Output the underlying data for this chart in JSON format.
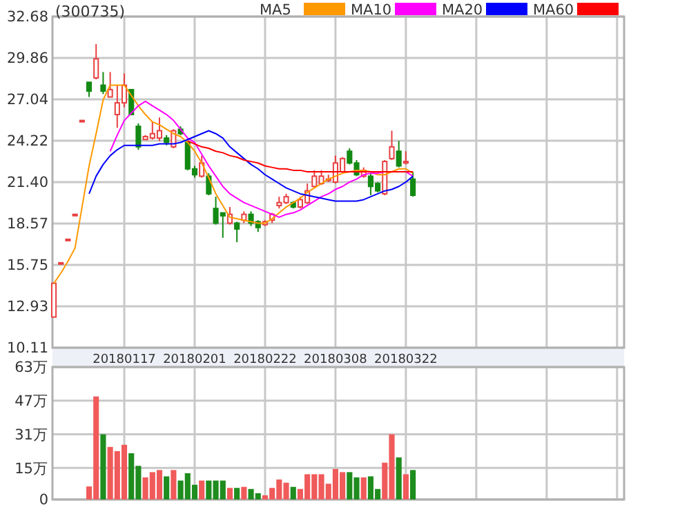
{
  "chart_data": [
    {
      "type": "candlestick",
      "title": "(300735)",
      "categories": [
        null,
        null,
        null,
        null,
        null,
        null,
        null,
        null,
        null,
        null,
        "20180117",
        null,
        null,
        null,
        null,
        null,
        null,
        null,
        null,
        null,
        "20180201",
        null,
        null,
        null,
        null,
        null,
        null,
        null,
        null,
        null,
        "20180222",
        null,
        null,
        null,
        null,
        null,
        null,
        null,
        null,
        null,
        "20180308",
        null,
        null,
        null,
        null,
        null,
        null,
        null,
        null,
        null,
        "20180322",
        null,
        null,
        null,
        null,
        null,
        null,
        null,
        null,
        null,
        null,
        null,
        null,
        null,
        null,
        null,
        null,
        null,
        null,
        null,
        null,
        null,
        null,
        null,
        null,
        null,
        null,
        null,
        null,
        null,
        null
      ],
      "ohlc": [
        [
          12.2,
          14.5,
          12.2,
          14.5
        ],
        [
          15.9,
          15.9,
          15.9,
          15.9
        ],
        [
          17.5,
          17.5,
          17.5,
          17.5
        ],
        [
          19.2,
          19.2,
          19.2,
          19.2
        ],
        [
          25.6,
          25.6,
          25.6,
          25.6
        ],
        [
          28.2,
          28.2,
          27.2,
          27.6
        ],
        [
          28.5,
          30.8,
          28.4,
          29.8
        ],
        [
          28.0,
          28.9,
          27.4,
          27.6
        ],
        [
          27.2,
          28.9,
          27.2,
          27.7
        ],
        [
          26.0,
          28.0,
          25.1,
          26.8
        ],
        [
          26.8,
          28.8,
          26.5,
          28.0
        ],
        [
          27.7,
          27.7,
          26.0,
          26.0
        ],
        [
          25.2,
          25.4,
          23.6,
          23.8
        ],
        [
          24.3,
          24.6,
          24.3,
          24.5
        ],
        [
          24.4,
          25.5,
          24.3,
          24.7
        ],
        [
          24.4,
          25.8,
          24.2,
          24.9
        ],
        [
          24.4,
          24.6,
          23.9,
          24.1
        ],
        [
          23.8,
          25.0,
          23.7,
          24.9
        ],
        [
          25.0,
          25.2,
          24.6,
          24.7
        ],
        [
          24.1,
          24.2,
          22.2,
          22.3
        ],
        [
          22.3,
          22.5,
          21.7,
          21.9
        ],
        [
          21.8,
          23.2,
          21.7,
          22.7
        ],
        [
          21.8,
          22.0,
          20.5,
          20.6
        ],
        [
          19.6,
          20.4,
          18.5,
          18.6
        ],
        [
          19.3,
          19.3,
          17.6,
          19.1
        ],
        [
          18.6,
          19.7,
          18.5,
          19.2
        ],
        [
          18.6,
          18.7,
          17.3,
          18.2
        ],
        [
          18.8,
          19.4,
          18.6,
          19.2
        ],
        [
          19.2,
          19.4,
          18.4,
          18.6
        ],
        [
          18.7,
          18.8,
          18.0,
          18.3
        ],
        [
          18.5,
          18.8,
          18.4,
          18.7
        ],
        [
          18.8,
          19.3,
          18.6,
          19.2
        ],
        [
          19.8,
          20.4,
          19.6,
          20.0
        ],
        [
          20.0,
          20.6,
          19.9,
          20.4
        ],
        [
          20.0,
          20.1,
          19.6,
          19.7
        ],
        [
          19.7,
          20.4,
          19.6,
          20.2
        ],
        [
          20.0,
          21.3,
          19.9,
          20.8
        ],
        [
          21.1,
          22.2,
          21.0,
          21.8
        ],
        [
          21.3,
          22.2,
          21.2,
          21.8
        ],
        [
          21.5,
          21.9,
          21.4,
          21.6
        ],
        [
          21.4,
          23.2,
          21.3,
          22.7
        ],
        [
          22.1,
          23.1,
          22.0,
          23.0
        ],
        [
          23.5,
          23.7,
          22.6,
          22.7
        ],
        [
          22.7,
          22.9,
          21.8,
          21.9
        ],
        [
          21.8,
          22.4,
          21.7,
          22.2
        ],
        [
          21.8,
          22.0,
          20.5,
          21.1
        ],
        [
          21.3,
          21.4,
          20.7,
          20.8
        ],
        [
          20.6,
          22.9,
          20.5,
          22.8
        ],
        [
          23.0,
          24.9,
          22.9,
          23.8
        ],
        [
          23.5,
          24.2,
          22.4,
          22.5
        ],
        [
          22.7,
          23.5,
          22.6,
          22.8
        ],
        [
          21.6,
          22.1,
          20.4,
          20.5
        ],
        null,
        null,
        null,
        null,
        null,
        null,
        null,
        null,
        null,
        null,
        null,
        null,
        null,
        null,
        null,
        null,
        null,
        null,
        null,
        null,
        null,
        null,
        null,
        null,
        null,
        null,
        null,
        null,
        null
      ],
      "series": [
        {
          "name": "MA5",
          "type": "line",
          "color": "#ff9900",
          "values": [
            14.5,
            15.2,
            16.0,
            16.9,
            19.7,
            22.5,
            24.7,
            27.0,
            28.0,
            28.0,
            28.0,
            27.3,
            26.6,
            26.0,
            25.5,
            25.3,
            25.0,
            24.7,
            24.5,
            24.1,
            23.5,
            22.7,
            21.7,
            20.6,
            19.8,
            19.0,
            18.9,
            18.8,
            18.7,
            18.6,
            18.6,
            18.9,
            19.3,
            19.7,
            20.0,
            20.3,
            20.7,
            21.0,
            21.3,
            21.6,
            21.8,
            22.0,
            22.1,
            22.2,
            22.2,
            22.1,
            21.9,
            21.9,
            22.1,
            22.3,
            22.3,
            22.0,
            null,
            null,
            null,
            null,
            null,
            null,
            null,
            null,
            null,
            null,
            null,
            null,
            null,
            null,
            null,
            null,
            null,
            null,
            null,
            null,
            null,
            null,
            null,
            null,
            null,
            null,
            null,
            null,
            null
          ]
        },
        {
          "name": "MA10",
          "type": "line",
          "color": "#ff00ff",
          "values": [
            null,
            null,
            null,
            null,
            null,
            null,
            null,
            null,
            23.5,
            24.6,
            25.6,
            26.1,
            26.6,
            26.9,
            26.6,
            26.3,
            26.0,
            25.6,
            25.0,
            24.4,
            24.1,
            23.3,
            22.5,
            21.8,
            21.1,
            20.6,
            20.3,
            20.0,
            19.8,
            19.6,
            19.4,
            19.2,
            19.0,
            19.2,
            19.3,
            19.5,
            19.8,
            20.1,
            20.4,
            20.6,
            20.9,
            21.1,
            21.4,
            21.6,
            21.9,
            22.0,
            22.0,
            22.1,
            22.1,
            22.1,
            22.1,
            21.8,
            null,
            null,
            null,
            null,
            null,
            null,
            null,
            null,
            null,
            null,
            null,
            null,
            null,
            null,
            null,
            null,
            null,
            null,
            null,
            null,
            null,
            null,
            null,
            null,
            null,
            null,
            null,
            null,
            null
          ]
        },
        {
          "name": "MA20",
          "type": "line",
          "color": "#0000ff",
          "values": [
            null,
            null,
            null,
            null,
            null,
            20.6,
            21.8,
            22.6,
            23.2,
            23.6,
            23.9,
            23.9,
            23.9,
            23.9,
            23.9,
            24.0,
            24.0,
            24.0,
            24.1,
            24.3,
            24.5,
            24.7,
            24.9,
            24.7,
            24.4,
            23.8,
            23.4,
            23.0,
            22.6,
            22.3,
            21.9,
            21.6,
            21.3,
            21.0,
            20.8,
            20.6,
            20.5,
            20.4,
            20.3,
            20.2,
            20.1,
            20.1,
            20.1,
            20.1,
            20.2,
            20.4,
            20.6,
            20.8,
            20.9,
            21.1,
            21.4,
            21.8,
            null,
            null,
            null,
            null,
            null,
            null,
            null,
            null,
            null,
            null,
            null,
            null,
            null,
            null,
            null,
            null,
            null,
            null,
            null,
            null,
            null,
            null,
            null,
            null,
            null,
            null,
            null,
            null,
            null
          ]
        },
        {
          "name": "MA60",
          "type": "line",
          "color": "#ff0000",
          "values": [
            null,
            null,
            null,
            null,
            null,
            null,
            null,
            null,
            null,
            null,
            null,
            null,
            null,
            null,
            null,
            null,
            null,
            null,
            null,
            24.2,
            24.0,
            23.8,
            23.7,
            23.5,
            23.4,
            23.2,
            23.1,
            22.9,
            22.8,
            22.7,
            22.5,
            22.4,
            22.3,
            22.3,
            22.2,
            22.2,
            22.1,
            22.1,
            22.1,
            22.1,
            22.1,
            22.1,
            22.1,
            22.1,
            22.1,
            22.1,
            22.1,
            22.1,
            22.1,
            22.1,
            22.1,
            22.1,
            null,
            null,
            null,
            null,
            null,
            null,
            null,
            null,
            null,
            null,
            null,
            null,
            null,
            null,
            null,
            null,
            null,
            null,
            null,
            null,
            null,
            null,
            null,
            null,
            null,
            null,
            null,
            null,
            null
          ]
        }
      ],
      "ylim": [
        10.11,
        32.68
      ],
      "yticks": [
        10.11,
        12.93,
        15.75,
        18.57,
        {
          "value": 21.4,
          "label": "21.40"
        },
        24.22,
        27.04,
        29.86,
        32.68
      ],
      "grid": true,
      "legend": "top right"
    },
    {
      "type": "bar",
      "categories": [
        null,
        null,
        null,
        null,
        null,
        null,
        null,
        null,
        null,
        null,
        null,
        null,
        null,
        null,
        null,
        null,
        null,
        null,
        null,
        null,
        null,
        null,
        null,
        null,
        null,
        null,
        null,
        null,
        null,
        null,
        null,
        null,
        null,
        null,
        null,
        null,
        null,
        null,
        null,
        null,
        null,
        null,
        null,
        null,
        null,
        null,
        null,
        null,
        null,
        null,
        null,
        null,
        null,
        null,
        null,
        null,
        null,
        null,
        null,
        null,
        null,
        null,
        null,
        null,
        null,
        null,
        null,
        null,
        null,
        null,
        null,
        null,
        null,
        null,
        null,
        null,
        null,
        null,
        null,
        null,
        null
      ],
      "values": [
        null,
        null,
        null,
        null,
        null,
        6.2,
        49,
        31,
        25,
        23,
        26,
        22,
        16,
        10.5,
        13,
        14,
        11,
        14,
        9,
        12.5,
        7,
        9,
        9,
        9,
        9,
        5.5,
        5.5,
        6,
        5,
        3,
        2,
        5.5,
        9.5,
        8,
        6,
        5,
        12,
        12,
        12,
        7.5,
        14.5,
        13,
        13,
        10.5,
        10.5,
        11,
        5,
        17.5,
        31,
        20,
        12,
        14,
        null,
        null,
        null,
        null,
        null,
        null,
        null,
        null,
        null,
        null,
        null,
        null,
        null,
        null,
        null,
        null,
        null,
        null,
        null,
        null,
        null,
        null,
        null,
        null,
        null,
        null,
        null,
        null,
        null
      ],
      "colors": [
        null,
        null,
        null,
        null,
        null,
        "#f05a5a",
        "#f05a5a",
        "#1e8c1e",
        "#f05a5a",
        "#f05a5a",
        "#f05a5a",
        "#1e8c1e",
        "#1e8c1e",
        "#f05a5a",
        "#f05a5a",
        "#f05a5a",
        "#1e8c1e",
        "#f05a5a",
        "#1e8c1e",
        "#1e8c1e",
        "#1e8c1e",
        "#f05a5a",
        "#1e8c1e",
        "#1e8c1e",
        "#1e8c1e",
        "#f05a5a",
        "#1e8c1e",
        "#f05a5a",
        "#1e8c1e",
        "#1e8c1e",
        "#f05a5a",
        "#f05a5a",
        "#f05a5a",
        "#f05a5a",
        "#1e8c1e",
        "#f05a5a",
        "#f05a5a",
        "#f05a5a",
        "#f05a5a",
        "#f05a5a",
        "#f05a5a",
        "#f05a5a",
        "#1e8c1e",
        "#1e8c1e",
        "#f05a5a",
        "#1e8c1e",
        "#1e8c1e",
        "#f05a5a",
        "#f05a5a",
        "#1e8c1e",
        "#f05a5a",
        "#1e8c1e",
        null,
        null,
        null,
        null,
        null,
        null,
        null,
        null,
        null,
        null,
        null,
        null,
        null,
        null,
        null,
        null,
        null,
        null,
        null,
        null,
        null,
        null,
        null,
        null,
        null,
        null,
        null,
        null,
        null
      ],
      "ylim": [
        0,
        63
      ],
      "yticks": [
        0,
        {
          "value": 15,
          "label": "15万"
        },
        {
          "value": 31,
          "label": "31万"
        },
        {
          "value": 47,
          "label": "47万"
        },
        {
          "value": 63,
          "label": "63万"
        }
      ],
      "grid": true,
      "tick_labels": "y"
    }
  ]
}
